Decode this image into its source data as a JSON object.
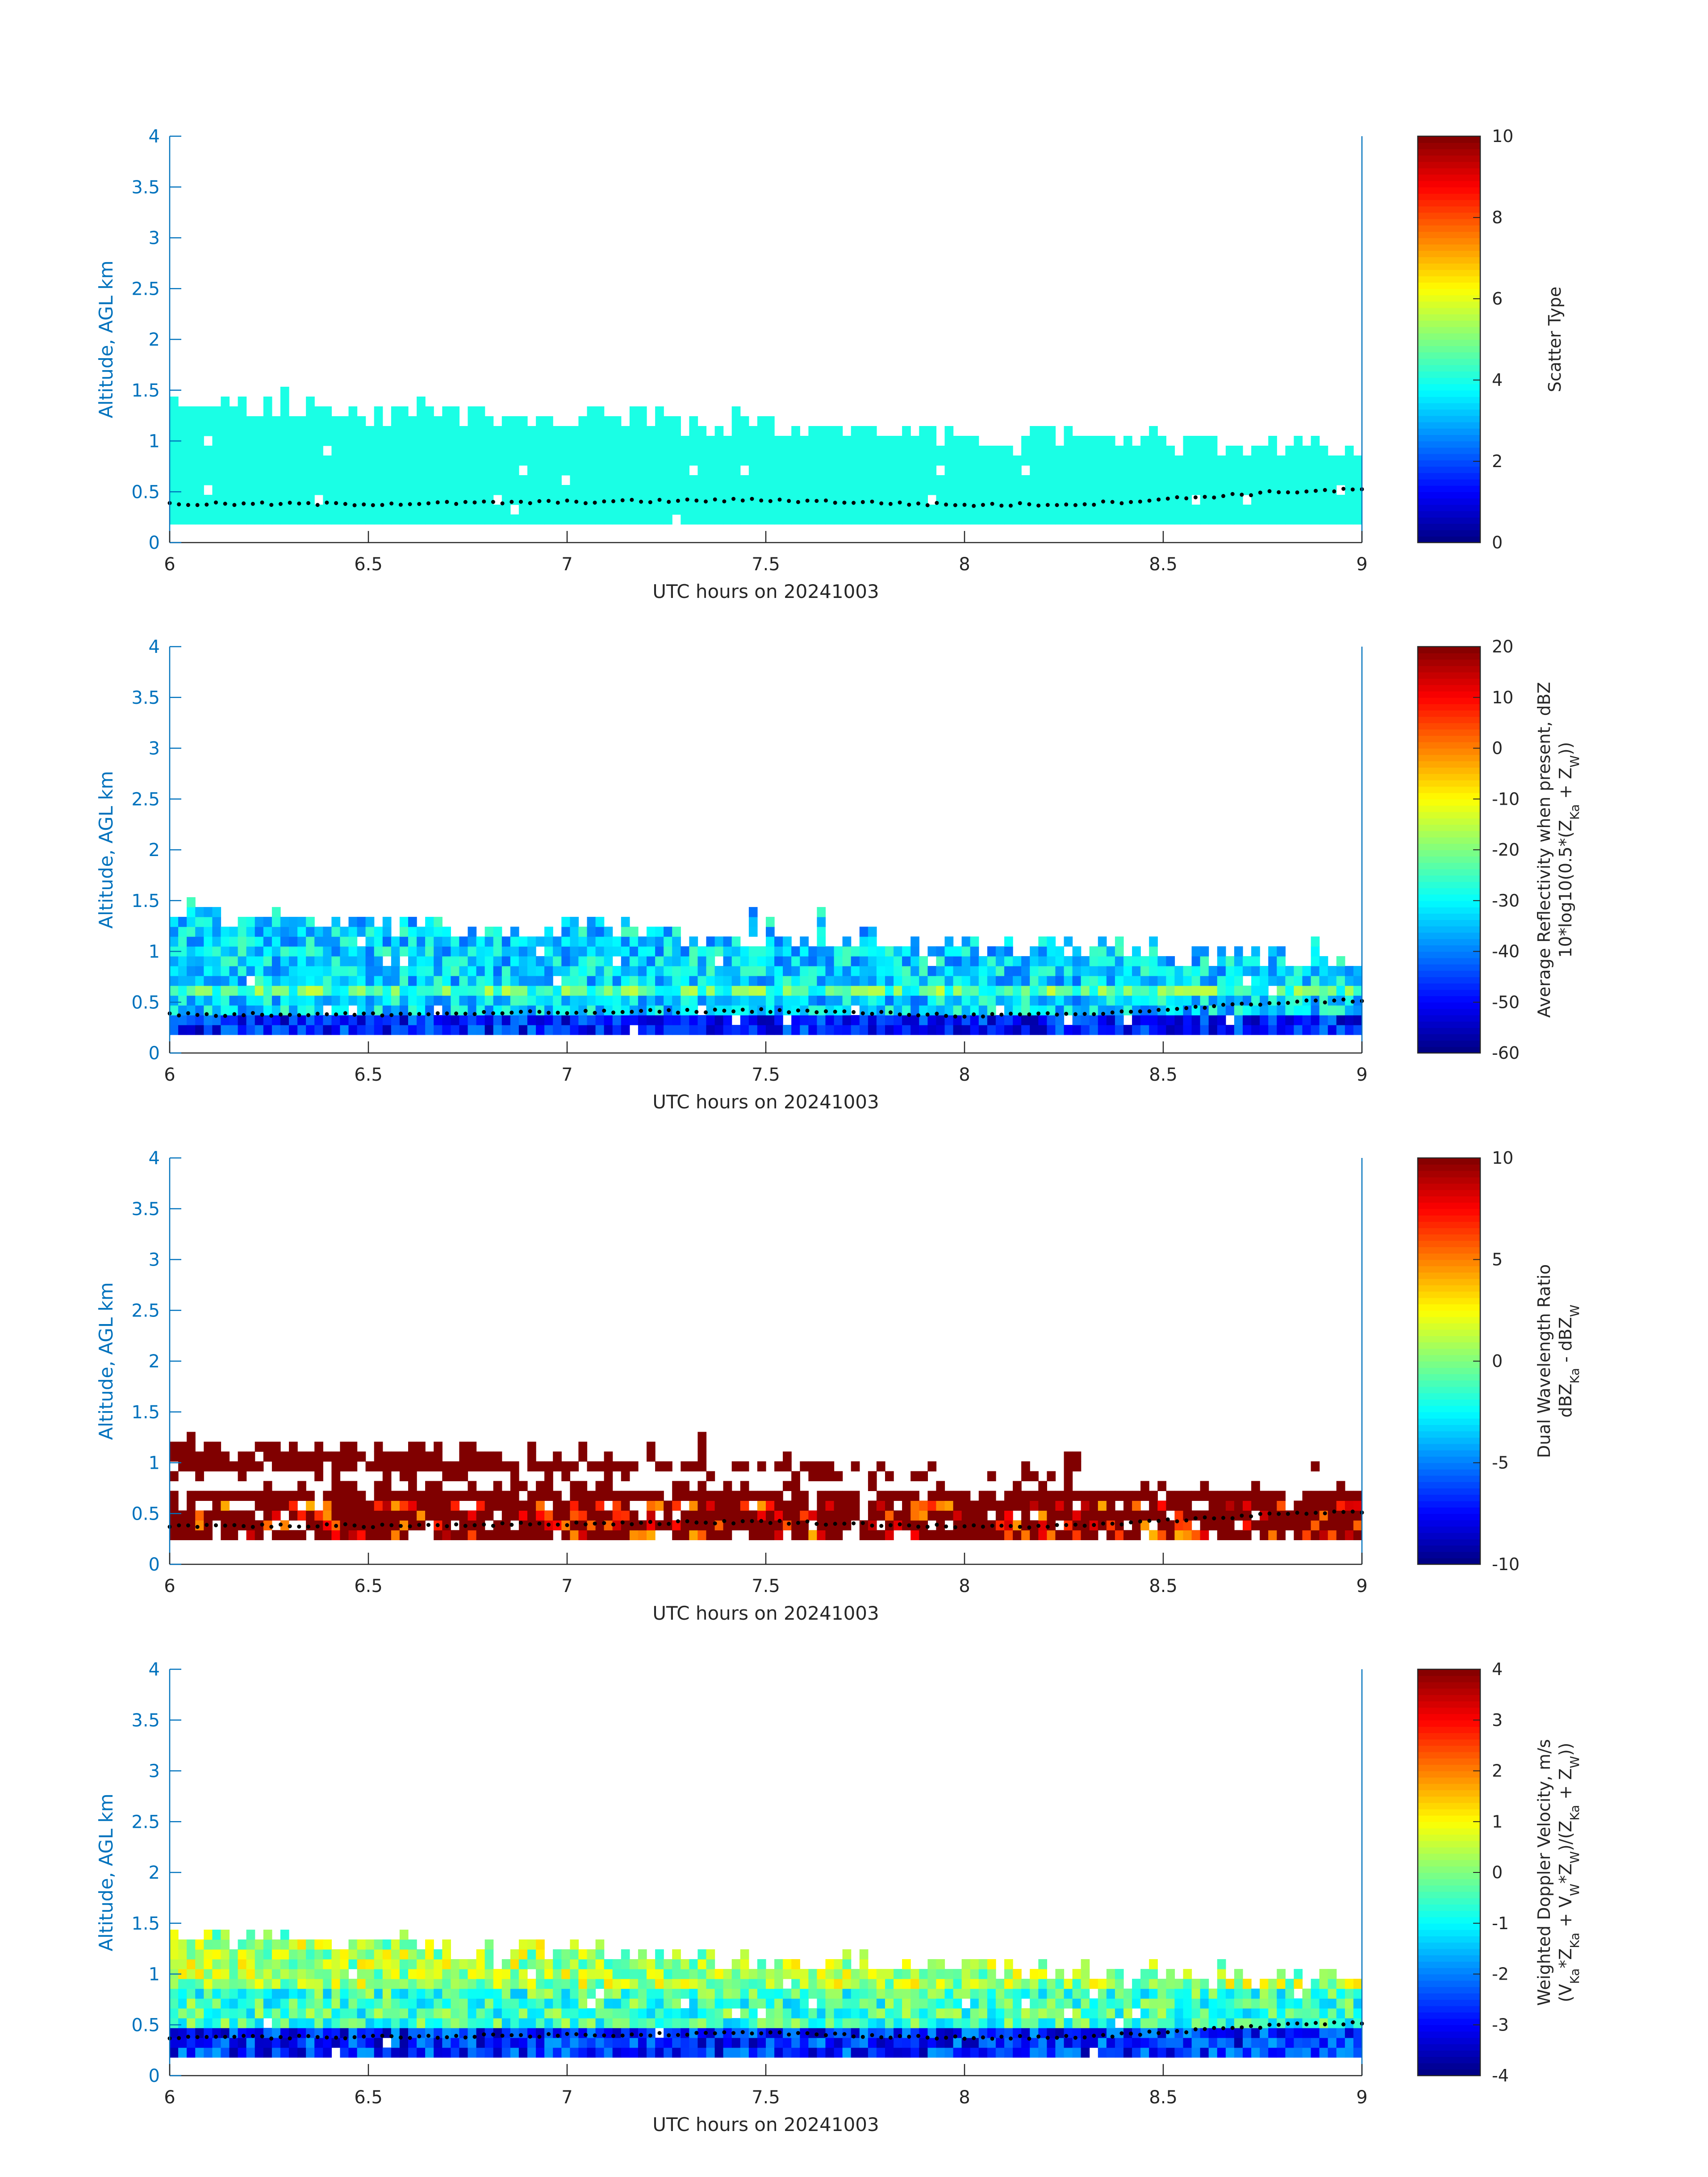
{
  "chart_data": [
    {
      "type": "heatmap",
      "xlabel": "UTC hours on 20241003",
      "ylabel": "Altitude, AGL km",
      "xlim": [
        6,
        9
      ],
      "ylim": [
        0,
        4
      ],
      "xticks": [
        "6",
        "6.5",
        "7",
        "7.5",
        "8",
        "8.5",
        "9"
      ],
      "yticks": [
        "0",
        "0.5",
        "1",
        "1.5",
        "2",
        "2.5",
        "3",
        "3.5",
        "4"
      ],
      "colorbar": {
        "label": [
          "Scatter Type"
        ],
        "range": [
          0,
          10
        ],
        "ticks": [
          "0",
          "2",
          "4",
          "6",
          "8",
          "10"
        ]
      },
      "field": {
        "base_km": 0.18,
        "top_start_km": 1.32,
        "top_end_km": 0.88,
        "dominant_value": 4.0,
        "variability": 0,
        "holes": 0.01
      },
      "cloud_base_line_km": [
        [
          6,
          0.38
        ],
        [
          6.5,
          0.38
        ],
        [
          7,
          0.4
        ],
        [
          7.5,
          0.42
        ],
        [
          8,
          0.37
        ],
        [
          8.3,
          0.38
        ],
        [
          8.6,
          0.45
        ],
        [
          8.8,
          0.5
        ],
        [
          9,
          0.52
        ]
      ],
      "colormap": "jet"
    },
    {
      "type": "heatmap",
      "xlabel": "UTC hours on 20241003",
      "ylabel": "Altitude, AGL km",
      "xlim": [
        6,
        9
      ],
      "ylim": [
        0,
        4
      ],
      "xticks": [
        "6",
        "6.5",
        "7",
        "7.5",
        "8",
        "8.5",
        "9"
      ],
      "yticks": [
        "0",
        "0.5",
        "1",
        "1.5",
        "2",
        "2.5",
        "3",
        "3.5",
        "4"
      ],
      "colorbar": {
        "label": [
          "Average Reflectivity when present, dBZ",
          "10*log10(0.5*(Z",
          "Ka",
          " + Z",
          "W",
          "))"
        ],
        "range": [
          -60,
          20
        ],
        "ticks": [
          "-60",
          "-50",
          "-40",
          "-30",
          "-20",
          "-10",
          "0",
          "10",
          "20"
        ]
      },
      "field": {
        "base_km": 0.18,
        "top_start_km": 1.32,
        "top_end_km": 0.88,
        "dominant_value": -33,
        "variability": 9,
        "holes": 0.02
      },
      "cloud_base_line_km": [
        [
          6,
          0.38
        ],
        [
          6.5,
          0.38
        ],
        [
          7,
          0.4
        ],
        [
          7.5,
          0.42
        ],
        [
          8,
          0.37
        ],
        [
          8.3,
          0.38
        ],
        [
          8.6,
          0.45
        ],
        [
          8.8,
          0.5
        ],
        [
          9,
          0.52
        ]
      ],
      "colormap": "jet"
    },
    {
      "type": "heatmap",
      "xlabel": "UTC hours on 20241003",
      "ylabel": "Altitude, AGL km",
      "xlim": [
        6,
        9
      ],
      "ylim": [
        0,
        4
      ],
      "xticks": [
        "6",
        "6.5",
        "7",
        "7.5",
        "8",
        "8.5",
        "9"
      ],
      "yticks": [
        "0",
        "0.5",
        "1",
        "1.5",
        "2",
        "2.5",
        "3",
        "3.5",
        "4"
      ],
      "colorbar": {
        "label": [
          "Dual Wavelength Ratio",
          "dBZ",
          "Ka",
          " - dBZ",
          "W"
        ],
        "range": [
          -10,
          10
        ],
        "ticks": [
          "-10",
          "-5",
          "0",
          "5",
          "10"
        ]
      },
      "field": {
        "base_km": 0.24,
        "top_start_km": 1.18,
        "top_end_km": 0.7,
        "dominant_value": 10,
        "variability": 0,
        "holes": 0.12
      },
      "cloud_base_line_km": [
        [
          6,
          0.38
        ],
        [
          6.5,
          0.38
        ],
        [
          7,
          0.4
        ],
        [
          7.5,
          0.42
        ],
        [
          8,
          0.37
        ],
        [
          8.3,
          0.38
        ],
        [
          8.6,
          0.45
        ],
        [
          8.8,
          0.5
        ],
        [
          9,
          0.52
        ]
      ],
      "colormap": "jet"
    },
    {
      "type": "heatmap",
      "xlabel": "UTC hours on 20241003",
      "ylabel": "Altitude, AGL km",
      "xlim": [
        6,
        9
      ],
      "ylim": [
        0,
        4
      ],
      "xticks": [
        "6",
        "6.5",
        "7",
        "7.5",
        "8",
        "8.5",
        "9"
      ],
      "yticks": [
        "0",
        "0.5",
        "1",
        "1.5",
        "2",
        "2.5",
        "3",
        "3.5",
        "4"
      ],
      "colorbar": {
        "label": [
          "Weighted Doppler Velocity, m/s",
          "(V",
          "Ka",
          "*Z",
          "Ka",
          " + V",
          "W",
          "*Z",
          "W",
          ")/(Z",
          "Ka",
          " + Z",
          "W",
          "))"
        ],
        "range": [
          -4,
          4
        ],
        "ticks": [
          "-4",
          "-3",
          "-2",
          "-1",
          "0",
          "1",
          "2",
          "3",
          "4"
        ]
      },
      "field": {
        "base_km": 0.18,
        "top_start_km": 1.32,
        "top_end_km": 0.88,
        "dominant_value": -0.5,
        "variability": 1.0,
        "holes": 0.02
      },
      "cloud_base_line_km": [
        [
          6,
          0.38
        ],
        [
          6.5,
          0.38
        ],
        [
          7,
          0.4
        ],
        [
          7.5,
          0.42
        ],
        [
          8,
          0.37
        ],
        [
          8.3,
          0.38
        ],
        [
          8.6,
          0.45
        ],
        [
          8.8,
          0.5
        ],
        [
          9,
          0.52
        ]
      ],
      "colormap": "jet"
    }
  ]
}
